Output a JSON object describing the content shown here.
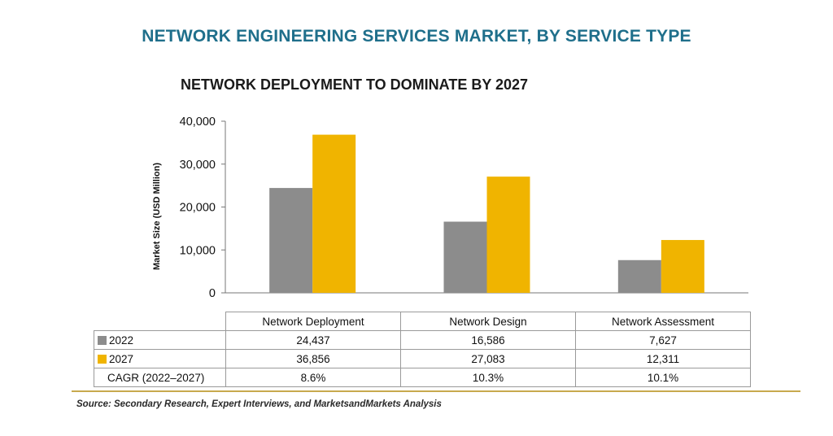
{
  "chart_data": {
    "type": "bar",
    "title": "NETWORK ENGINEERING SERVICES MARKET, BY SERVICE TYPE",
    "subtitle": "NETWORK DEPLOYMENT TO DOMINATE BY 2027",
    "ylabel": "Market Size (USD Million)",
    "xlabel": "",
    "ylim": [
      0,
      40000
    ],
    "yticks": [
      "0",
      "10,000",
      "20,000",
      "30,000",
      "40,000"
    ],
    "grid": false,
    "categories": [
      "Network Deployment",
      "Network Design",
      "Network Assessment"
    ],
    "series": [
      {
        "name": "2022",
        "color": "#8c8c8c",
        "values": [
          24437,
          16586,
          7627
        ],
        "labels": [
          "24,437",
          "16,586",
          "7,627"
        ]
      },
      {
        "name": "2027",
        "color": "#f0b400",
        "values": [
          36856,
          27083,
          12311
        ],
        "labels": [
          "36,856",
          "27,083",
          "12,311"
        ]
      }
    ],
    "cagr": {
      "label": "CAGR (2022–2027)",
      "values": [
        "8.6%",
        "10.3%",
        "10.1%"
      ]
    },
    "source": "Source: Secondary Research, Expert Interviews, and MarketsandMarkets Analysis"
  }
}
